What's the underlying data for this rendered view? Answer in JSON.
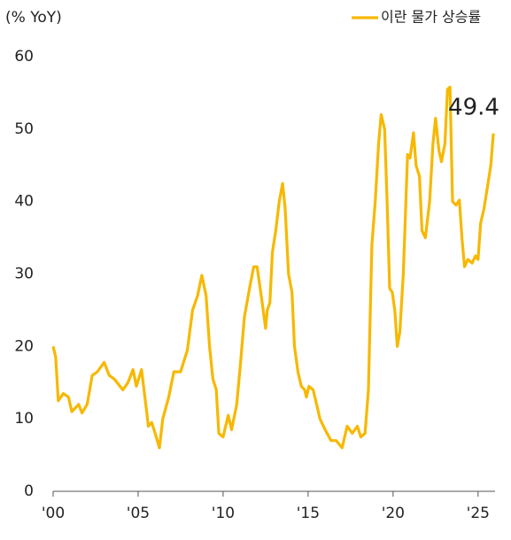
{
  "chart_data": {
    "type": "line",
    "y_axis_label": "(% YoY)",
    "annotation": "49.4",
    "legend_position": "top-right",
    "grid": false,
    "xlim": [
      2000,
      2026
    ],
    "xticks": [
      {
        "value": 2000,
        "label": "'00"
      },
      {
        "value": 2005,
        "label": "'05"
      },
      {
        "value": 2010,
        "label": "'10"
      },
      {
        "value": 2015,
        "label": "'15"
      },
      {
        "value": 2020,
        "label": "'20"
      },
      {
        "value": 2025,
        "label": "'25"
      }
    ],
    "ylim": [
      0,
      60
    ],
    "yticks": [
      0,
      10,
      20,
      30,
      40,
      50,
      60
    ],
    "x": [
      2000,
      2000.15,
      2000.3,
      2000.6,
      2000.9,
      2001.1,
      2001.5,
      2001.7,
      2002.0,
      2002.3,
      2002.6,
      2003.0,
      2003.3,
      2003.6,
      2004.1,
      2004.4,
      2004.7,
      2004.9,
      2005.2,
      2005.5,
      2005.6,
      2005.8,
      2006.0,
      2006.25,
      2006.45,
      2006.8,
      2007.1,
      2007.5,
      2007.9,
      2008.2,
      2008.5,
      2008.75,
      2009.0,
      2009.2,
      2009.4,
      2009.6,
      2009.75,
      2010.0,
      2010.3,
      2010.5,
      2010.8,
      2011.0,
      2011.25,
      2011.55,
      2011.8,
      2012.0,
      2012.3,
      2012.5,
      2012.6,
      2012.75,
      2012.9,
      2013.1,
      2013.3,
      2013.5,
      2013.65,
      2013.85,
      2014.05,
      2014.2,
      2014.4,
      2014.6,
      2014.8,
      2014.9,
      2015.05,
      2015.3,
      2015.5,
      2015.7,
      2016.0,
      2016.35,
      2016.65,
      2017.0,
      2017.3,
      2017.6,
      2017.9,
      2018.1,
      2018.35,
      2018.55,
      2018.75,
      2018.95,
      2019.15,
      2019.3,
      2019.5,
      2019.65,
      2019.8,
      2019.95,
      2020.1,
      2020.25,
      2020.4,
      2020.6,
      2020.85,
      2021.0,
      2021.2,
      2021.35,
      2021.55,
      2021.7,
      2021.9,
      2022.15,
      2022.35,
      2022.5,
      2022.7,
      2022.85,
      2023.05,
      2023.2,
      2023.35,
      2023.5,
      2023.7,
      2023.9,
      2024.05,
      2024.2,
      2024.4,
      2024.65,
      2024.85,
      2025.0,
      2025.15,
      2025.35,
      2025.55,
      2025.75,
      2025.9
    ],
    "series": [
      {
        "name": "이란 물가 상승률",
        "color": "#f7b800",
        "values": [
          20,
          18.5,
          12.5,
          13.5,
          13,
          11,
          12,
          10.8,
          12,
          16,
          16.5,
          17.8,
          16,
          15.5,
          14,
          15,
          16.8,
          14.5,
          16.8,
          11,
          9,
          9.5,
          8,
          6,
          10,
          13,
          16.5,
          16.5,
          19.5,
          25,
          27,
          29.8,
          27,
          20,
          15.5,
          14,
          8,
          7.5,
          10.5,
          8.5,
          12,
          17,
          24,
          28,
          31,
          31,
          26,
          22.5,
          25,
          26,
          33,
          36,
          40,
          42.5,
          39,
          30,
          27.5,
          20,
          16.5,
          14.5,
          14,
          13,
          14.5,
          14,
          12,
          10,
          8.5,
          7,
          7,
          6,
          9,
          8,
          9,
          7.5,
          8,
          14,
          34,
          40,
          48,
          52,
          50,
          40,
          28,
          27.5,
          25,
          20,
          22,
          30,
          46.5,
          46,
          49.5,
          45,
          43.5,
          36,
          35,
          40,
          48,
          51.5,
          47,
          45.5,
          48,
          55.5,
          55.8,
          40,
          39.5,
          40.2,
          35,
          31,
          32,
          31.5,
          32.5,
          32,
          37,
          39,
          42,
          45,
          49.4
        ]
      }
    ]
  }
}
